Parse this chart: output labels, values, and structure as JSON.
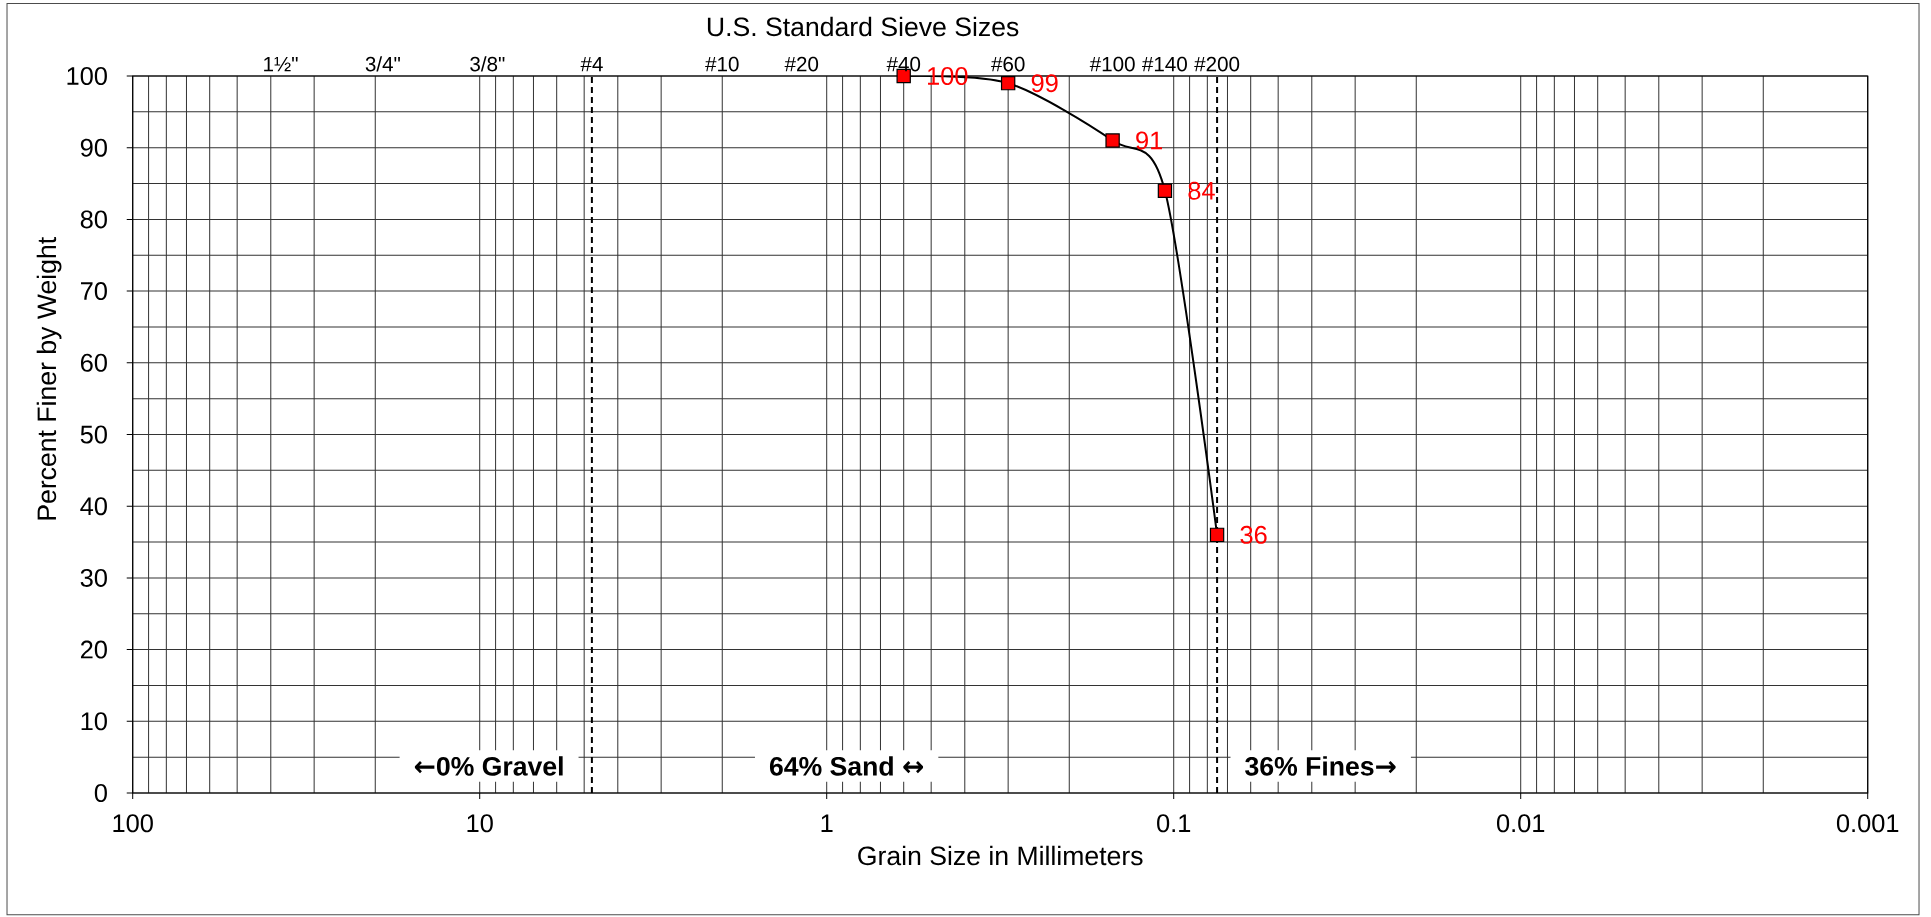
{
  "chart_data": {
    "type": "line",
    "title": "U.S. Standard Sieve Sizes",
    "xlabel": "Grain Size in Millimeters",
    "ylabel": "Percent Finer by Weight",
    "x": [
      0.6,
      0.3,
      0.15,
      0.106,
      0.075
    ],
    "series": [
      {
        "color": "#000000",
        "colors": [
          "#ff0000",
          "#ff0000",
          "#ff0000",
          "#ff0000",
          "#ff0000"
        ],
        "values": [
          100,
          99,
          91,
          84,
          36
        ]
      }
    ],
    "log": "x",
    "xlim": [
      100,
      0.001
    ],
    "xticks": [
      100,
      10,
      1,
      0.1,
      0.01,
      0.001
    ],
    "ylim": [
      0,
      100
    ],
    "yticks": [
      0,
      {
        "value": 5,
        "label": null
      },
      10,
      {
        "value": 15,
        "label": null
      },
      20,
      {
        "value": 25,
        "label": null
      },
      30,
      {
        "value": 35,
        "label": null
      },
      40,
      {
        "value": 45,
        "label": null
      },
      50,
      {
        "value": 55,
        "label": null
      },
      60,
      {
        "value": 65,
        "label": null
      },
      70,
      {
        "value": 75,
        "label": null
      },
      80,
      {
        "value": 85,
        "label": null
      },
      90,
      {
        "value": 95,
        "label": null
      },
      100
    ],
    "grid": true,
    "marker": "square",
    "line_style": "solid",
    "data_labels": true,
    "ref_lines": [
      {
        "axis": "x",
        "value": 4.75,
        "color": "#000000",
        "line_style": "dashed"
      },
      {
        "axis": "x",
        "value": 0.075,
        "color": "#000000",
        "line_style": "dashed"
      }
    ],
    "annotations": [
      "1½\"",
      "3/4\"",
      "3/8\"",
      "#4",
      "#10",
      "#20",
      "#40",
      "#60",
      "#100",
      "#140",
      "#200",
      "←0% Gravel",
      "64% Sand ↔",
      "36% Fines→"
    ]
  }
}
